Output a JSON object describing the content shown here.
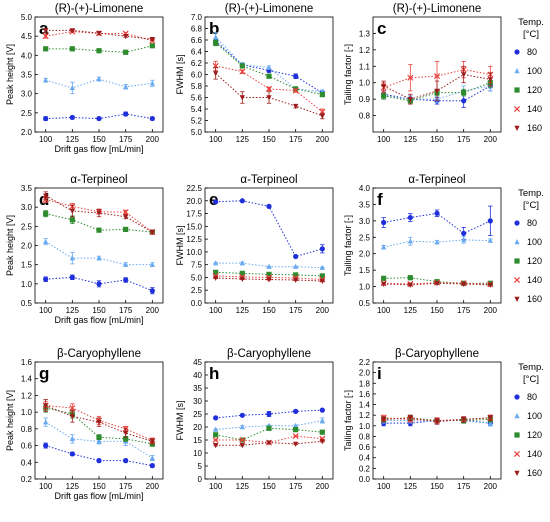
{
  "figure": {
    "legend": {
      "title_line1": "Temp.",
      "title_line2": "[°C]",
      "entries": [
        {
          "label": "80",
          "marker": "circle",
          "color": "#1f2fd9"
        },
        {
          "label": "100",
          "marker": "triangle",
          "color": "#6aaaf0"
        },
        {
          "label": "120",
          "marker": "square",
          "color": "#2e8b2e"
        },
        {
          "label": "140",
          "marker": "cross",
          "color": "#e8413c"
        },
        {
          "label": "160",
          "marker": "triangle-down",
          "color": "#9b1c1c"
        }
      ]
    }
  },
  "chart_data": [
    {
      "panel": "a",
      "type": "line",
      "title": "(R)-(+)-Limonene",
      "xlabel": "Drift gas flow [mL/min]",
      "ylabel": "Peak height [V]",
      "x": [
        100,
        125,
        150,
        175,
        200
      ],
      "xticks": [
        "100",
        "125",
        "150",
        "175",
        "200"
      ],
      "ylim": [
        2.0,
        5.0
      ],
      "yticks": [
        "2.0",
        "2.5",
        "3.0",
        "3.5",
        "4.0",
        "4.5",
        "5.0"
      ],
      "series": [
        {
          "label": "80",
          "values": [
            2.35,
            2.38,
            2.35,
            2.47,
            2.35
          ],
          "err": [
            0.05,
            0.04,
            0.04,
            0.05,
            0.04
          ]
        },
        {
          "label": "100",
          "values": [
            3.35,
            3.15,
            3.38,
            3.18,
            3.27
          ],
          "err": [
            0.05,
            0.15,
            0.05,
            0.06,
            0.08
          ]
        },
        {
          "label": "120",
          "values": [
            4.17,
            4.17,
            4.12,
            4.08,
            4.25
          ],
          "err": [
            0.03,
            0.03,
            0.03,
            0.03,
            0.03
          ]
        },
        {
          "label": "140",
          "values": [
            4.5,
            4.62,
            4.57,
            4.57,
            4.38
          ],
          "err": [
            0.05,
            0.03,
            0.03,
            0.03,
            0.03
          ]
        },
        {
          "label": "160",
          "values": [
            4.65,
            4.65,
            4.58,
            4.5,
            4.42
          ],
          "err": [
            0.05,
            0.03,
            0.03,
            0.03,
            0.03
          ]
        }
      ]
    },
    {
      "panel": "b",
      "type": "line",
      "title": "(R)-(+)-Limonene",
      "xlabel": "",
      "ylabel": "FWHM [s]",
      "x": [
        100,
        125,
        150,
        175,
        200
      ],
      "xticks": [
        "100",
        "125",
        "150",
        "175",
        "200"
      ],
      "ylim": [
        5.0,
        7.0
      ],
      "yticks": [
        "5.0",
        "5.2",
        "5.4",
        "5.6",
        "5.8",
        "6.0",
        "6.2",
        "6.4",
        "6.6",
        "6.8",
        "7.0"
      ],
      "series": [
        {
          "label": "80",
          "values": [
            6.58,
            6.17,
            6.07,
            5.97,
            5.68
          ],
          "err": [
            0.04,
            0.03,
            0.03,
            0.04,
            0.03
          ]
        },
        {
          "label": "100",
          "values": [
            6.65,
            6.17,
            6.12,
            5.75,
            5.7
          ],
          "err": [
            0.08,
            0.03,
            0.03,
            0.03,
            0.03
          ]
        },
        {
          "label": "120",
          "values": [
            6.55,
            6.15,
            5.97,
            5.75,
            5.65
          ],
          "err": [
            0.05,
            0.03,
            0.03,
            0.03,
            0.03
          ]
        },
        {
          "label": "140",
          "values": [
            6.15,
            6.05,
            5.75,
            5.72,
            5.35
          ],
          "err": [
            0.08,
            0.03,
            0.03,
            0.03,
            0.05
          ]
        },
        {
          "label": "160",
          "values": [
            6.02,
            5.6,
            5.6,
            5.45,
            5.28
          ],
          "err": [
            0.1,
            0.1,
            0.1,
            0.03,
            0.05
          ]
        }
      ]
    },
    {
      "panel": "c",
      "type": "line",
      "title": "(R)-(+)-Limonene",
      "xlabel": "",
      "ylabel": "Tailing factor [-]",
      "x": [
        100,
        125,
        150,
        175,
        200
      ],
      "xticks": [
        "100",
        "125",
        "150",
        "175",
        "200"
      ],
      "ylim": [
        0.7,
        1.4
      ],
      "yticks": [
        "0.8",
        "0.9",
        "1.0",
        "1.1",
        "1.2",
        "1.3"
      ],
      "series": [
        {
          "label": "80",
          "values": [
            0.93,
            0.9,
            0.89,
            0.89,
            0.98
          ],
          "err": [
            0.02,
            0.02,
            0.02,
            0.04,
            0.03
          ]
        },
        {
          "label": "100",
          "values": [
            0.92,
            0.9,
            0.9,
            0.95,
            0.98
          ],
          "err": [
            0.02,
            0.02,
            0.02,
            0.03,
            0.03
          ]
        },
        {
          "label": "120",
          "values": [
            0.92,
            0.89,
            0.94,
            0.94,
            1.0
          ],
          "err": [
            0.02,
            0.02,
            0.02,
            0.02,
            0.03
          ]
        },
        {
          "label": "140",
          "values": [
            0.97,
            1.03,
            1.04,
            1.08,
            1.05
          ],
          "err": [
            0.03,
            0.08,
            0.09,
            0.05,
            0.05
          ]
        },
        {
          "label": "160",
          "values": [
            0.98,
            0.9,
            0.95,
            1.05,
            1.02
          ],
          "err": [
            0.03,
            0.03,
            0.06,
            0.05,
            0.04
          ]
        }
      ]
    },
    {
      "panel": "d",
      "type": "line",
      "title": "α-Terpineol",
      "xlabel": "Drift gas flow [mL/min]",
      "ylabel": "Peak height [V]",
      "x": [
        100,
        125,
        150,
        175,
        200
      ],
      "xticks": [
        "100",
        "125",
        "150",
        "175",
        "200"
      ],
      "ylim": [
        0.5,
        3.5
      ],
      "yticks": [
        "0.5",
        "1.0",
        "1.5",
        "2.0",
        "2.5",
        "3.0",
        "3.5"
      ],
      "series": [
        {
          "label": "80",
          "values": [
            1.12,
            1.17,
            1.0,
            1.1,
            0.82
          ],
          "err": [
            0.06,
            0.06,
            0.08,
            0.06,
            0.08
          ]
        },
        {
          "label": "100",
          "values": [
            2.1,
            1.67,
            1.67,
            1.5,
            1.5
          ],
          "err": [
            0.08,
            0.15,
            0.05,
            0.05,
            0.05
          ]
        },
        {
          "label": "120",
          "values": [
            2.83,
            2.67,
            2.4,
            2.42,
            2.35
          ],
          "err": [
            0.08,
            0.1,
            0.03,
            0.03,
            0.03
          ]
        },
        {
          "label": "140",
          "values": [
            3.2,
            3.02,
            2.88,
            2.87,
            2.35
          ],
          "err": [
            0.08,
            0.08,
            0.05,
            0.05,
            0.05
          ]
        },
        {
          "label": "160",
          "values": [
            3.3,
            2.9,
            2.85,
            2.75,
            2.35
          ],
          "err": [
            0.1,
            0.15,
            0.1,
            0.05,
            0.05
          ]
        }
      ]
    },
    {
      "panel": "e",
      "type": "line",
      "title": "α-Terpineol",
      "xlabel": "",
      "ylabel": "FWHM [s]",
      "x": [
        100,
        125,
        150,
        175,
        200
      ],
      "xticks": [
        "100",
        "125",
        "150",
        "175",
        "200"
      ],
      "ylim": [
        0,
        22.5
      ],
      "yticks": [
        "0.0",
        "2.5",
        "5.0",
        "7.5",
        "10.0",
        "12.5",
        "15.0",
        "17.5",
        "20.0",
        "22.5"
      ],
      "series": [
        {
          "label": "80",
          "values": [
            19.8,
            20.0,
            18.9,
            9.1,
            10.6
          ],
          "err": [
            0.15,
            0.1,
            0.25,
            0.1,
            0.8
          ]
        },
        {
          "label": "100",
          "values": [
            7.8,
            7.8,
            7.1,
            7.1,
            6.9
          ],
          "err": [
            0.1,
            0.2,
            0.1,
            0.1,
            0.1
          ]
        },
        {
          "label": "120",
          "values": [
            6.0,
            5.8,
            5.6,
            5.5,
            5.3
          ],
          "err": [
            0.1,
            0.1,
            0.1,
            0.1,
            0.1
          ]
        },
        {
          "label": "140",
          "values": [
            5.3,
            5.1,
            5.0,
            4.9,
            4.6
          ],
          "err": [
            0.1,
            0.1,
            0.1,
            0.1,
            0.1
          ]
        },
        {
          "label": "160",
          "values": [
            4.9,
            4.7,
            4.6,
            4.5,
            4.3
          ],
          "err": [
            0.1,
            0.1,
            0.1,
            0.1,
            0.1
          ]
        }
      ]
    },
    {
      "panel": "f",
      "type": "line",
      "title": "α-Terpineol",
      "xlabel": "",
      "ylabel": "Tailing factor [-]",
      "x": [
        100,
        125,
        150,
        175,
        200
      ],
      "xticks": [
        "100",
        "125",
        "150",
        "175",
        "200"
      ],
      "ylim": [
        0.5,
        4.0
      ],
      "yticks": [
        "0.5",
        "1.0",
        "1.5",
        "2.0",
        "2.5",
        "3.0",
        "3.5",
        "4.0"
      ],
      "series": [
        {
          "label": "80",
          "values": [
            2.95,
            3.1,
            3.23,
            2.62,
            3.0
          ],
          "err": [
            0.15,
            0.12,
            0.1,
            0.18,
            0.45
          ]
        },
        {
          "label": "100",
          "values": [
            2.2,
            2.38,
            2.35,
            2.42,
            2.4
          ],
          "err": [
            0.05,
            0.12,
            0.05,
            0.1,
            0.05
          ]
        },
        {
          "label": "120",
          "values": [
            1.25,
            1.27,
            1.15,
            1.1,
            1.1
          ],
          "err": [
            0.05,
            0.05,
            0.03,
            0.03,
            0.03
          ]
        },
        {
          "label": "140",
          "values": [
            1.1,
            1.08,
            1.12,
            1.1,
            1.07
          ],
          "err": [
            0.03,
            0.03,
            0.03,
            0.03,
            0.03
          ]
        },
        {
          "label": "160",
          "values": [
            1.08,
            1.05,
            1.1,
            1.08,
            1.05
          ],
          "err": [
            0.03,
            0.03,
            0.03,
            0.03,
            0.03
          ]
        }
      ]
    },
    {
      "panel": "g",
      "type": "line",
      "title": "β-Caryophyllene",
      "xlabel": "Drift gas flow [mL/min]",
      "ylabel": "Peak height [V]",
      "x": [
        100,
        125,
        150,
        175,
        200
      ],
      "xticks": [
        "100",
        "125",
        "150",
        "175",
        "200"
      ],
      "ylim": [
        0.2,
        1.6
      ],
      "yticks": [
        "0.2",
        "0.4",
        "0.6",
        "0.8",
        "1.0",
        "1.2",
        "1.4",
        "1.6"
      ],
      "series": [
        {
          "label": "80",
          "values": [
            0.6,
            0.5,
            0.42,
            0.42,
            0.36
          ],
          "err": [
            0.03,
            0.02,
            0.02,
            0.02,
            0.02
          ]
        },
        {
          "label": "100",
          "values": [
            0.88,
            0.68,
            0.65,
            0.65,
            0.45
          ],
          "err": [
            0.05,
            0.05,
            0.03,
            0.05,
            0.03
          ]
        },
        {
          "label": "120",
          "values": [
            1.05,
            0.98,
            0.7,
            0.68,
            0.62
          ],
          "err": [
            0.05,
            0.05,
            0.03,
            0.03,
            0.03
          ]
        },
        {
          "label": "140",
          "values": [
            1.08,
            1.05,
            0.9,
            0.8,
            0.66
          ],
          "err": [
            0.05,
            0.05,
            0.05,
            0.03,
            0.03
          ]
        },
        {
          "label": "160",
          "values": [
            1.08,
            0.95,
            0.88,
            0.75,
            0.65
          ],
          "err": [
            0.07,
            0.07,
            0.05,
            0.05,
            0.03
          ]
        }
      ]
    },
    {
      "panel": "h",
      "type": "line",
      "title": "β-Caryophyllene",
      "xlabel": "",
      "ylabel": "FWHM [s]",
      "x": [
        100,
        125,
        150,
        175,
        200
      ],
      "xticks": [
        "100",
        "125",
        "150",
        "175",
        "200"
      ],
      "ylim": [
        0,
        45
      ],
      "yticks": [
        "0",
        "5",
        "10",
        "15",
        "20",
        "25",
        "30",
        "35",
        "40",
        "45"
      ],
      "series": [
        {
          "label": "80",
          "values": [
            23.5,
            24.5,
            25.0,
            26.0,
            26.5
          ],
          "err": [
            0.3,
            0.3,
            1.0,
            0.5,
            0.3
          ]
        },
        {
          "label": "100",
          "values": [
            19.0,
            20.0,
            20.5,
            20.5,
            22.5
          ],
          "err": [
            0.3,
            0.5,
            0.3,
            0.3,
            1.0
          ]
        },
        {
          "label": "120",
          "values": [
            17.0,
            15.0,
            19.5,
            19.0,
            18.0
          ],
          "err": [
            0.3,
            0.3,
            0.3,
            0.3,
            0.3
          ]
        },
        {
          "label": "140",
          "values": [
            15.0,
            15.0,
            14.0,
            16.5,
            15.5
          ],
          "err": [
            0.3,
            0.3,
            0.3,
            0.3,
            0.3
          ]
        },
        {
          "label": "160",
          "values": [
            13.0,
            13.0,
            14.0,
            13.5,
            14.5
          ],
          "err": [
            0.3,
            0.3,
            0.3,
            0.3,
            0.3
          ]
        }
      ]
    },
    {
      "panel": "i",
      "type": "line",
      "title": "β-Caryophyllene",
      "xlabel": "",
      "ylabel": "Tailing factor [-]",
      "x": [
        100,
        125,
        150,
        175,
        200
      ],
      "xticks": [
        "100",
        "125",
        "150",
        "175",
        "200"
      ],
      "ylim": [
        0.0,
        2.2
      ],
      "yticks": [
        "0.0",
        "0.2",
        "0.4",
        "0.6",
        "0.8",
        "1.0",
        "1.2",
        "1.4",
        "1.6",
        "1.8",
        "2.0",
        "2.2"
      ],
      "series": [
        {
          "label": "80",
          "values": [
            1.05,
            1.05,
            1.1,
            1.1,
            1.05
          ],
          "err": [
            0.05,
            0.05,
            0.05,
            0.05,
            0.05
          ]
        },
        {
          "label": "100",
          "values": [
            1.1,
            1.1,
            1.08,
            1.12,
            1.05
          ],
          "err": [
            0.05,
            0.05,
            0.05,
            0.05,
            0.05
          ]
        },
        {
          "label": "120",
          "values": [
            1.12,
            1.15,
            1.1,
            1.1,
            1.12
          ],
          "err": [
            0.05,
            0.05,
            0.05,
            0.05,
            0.05
          ]
        },
        {
          "label": "140",
          "values": [
            1.15,
            1.12,
            1.1,
            1.12,
            1.15
          ],
          "err": [
            0.05,
            0.05,
            0.05,
            0.05,
            0.05
          ]
        },
        {
          "label": "160",
          "values": [
            1.12,
            1.15,
            1.08,
            1.12,
            1.15
          ],
          "err": [
            0.05,
            0.05,
            0.05,
            0.05,
            0.05
          ]
        }
      ]
    }
  ]
}
